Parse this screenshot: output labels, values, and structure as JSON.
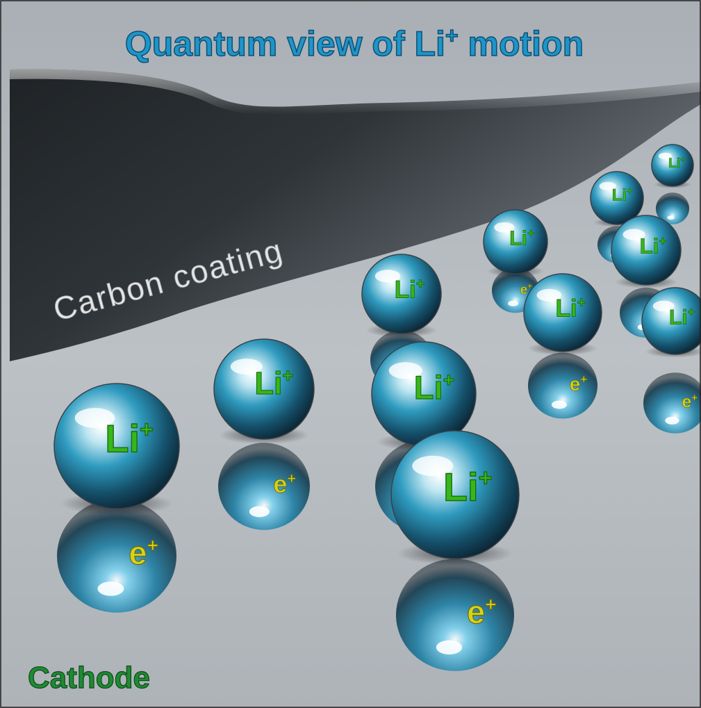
{
  "title": {
    "main": "Quantum view of Li",
    "superscript": "+",
    "tail": " motion"
  },
  "labels": {
    "carbon_coating": "Carbon coating",
    "cathode": "Cathode"
  },
  "particles": {
    "ion_base": "Li",
    "ion_charge": "+",
    "electron_base": "e",
    "electron_charge": "+"
  },
  "colors": {
    "title_fill": "#1e95c8",
    "title_stroke": "#0e4f73",
    "li_text": "#37b71a",
    "li_stroke": "#1d6a0d",
    "e_text": "#d7d31c",
    "e_stroke": "#6a6a0a",
    "cathode_text": "#1f8a33",
    "cathode_stroke": "#0c4a16",
    "coating_text": "#e5e5e5",
    "coating_dark": "#2c3034",
    "background": "#b7bcc0"
  }
}
